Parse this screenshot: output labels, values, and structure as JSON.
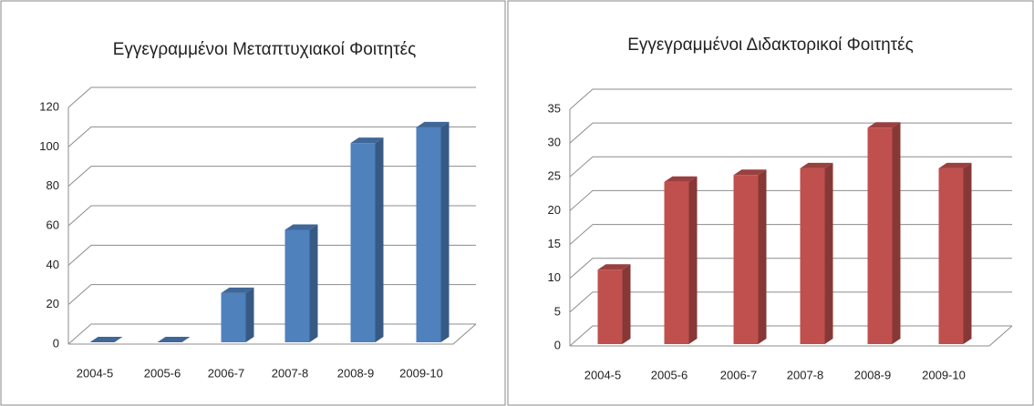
{
  "chart_data": [
    {
      "type": "bar3d",
      "title": "Εγγεγραμμένοι Μεταπτυχιακοί Φοιτητές",
      "categories": [
        "2004-5",
        "2005-6",
        "2006-7",
        "2007-8",
        "2008-9",
        "2009-10"
      ],
      "values": [
        0,
        0,
        25,
        57,
        101,
        109
      ],
      "color": "#4f81bd",
      "ylim": [
        0,
        120
      ],
      "yticks": [
        0,
        20,
        40,
        60,
        80,
        100,
        120
      ],
      "grid": true
    },
    {
      "type": "bar3d",
      "title": "Εγγεγραμμένοι Διδακτορικοί Φοιτητές",
      "categories": [
        "2004-5",
        "2005-6",
        "2006-7",
        "2007-8",
        "2008-9",
        "2009-10"
      ],
      "values": [
        11,
        24,
        25,
        26,
        32,
        26
      ],
      "color": "#c0504d",
      "ylim": [
        0,
        35
      ],
      "yticks": [
        0,
        5,
        10,
        15,
        20,
        25,
        30,
        35
      ],
      "grid": true
    }
  ]
}
